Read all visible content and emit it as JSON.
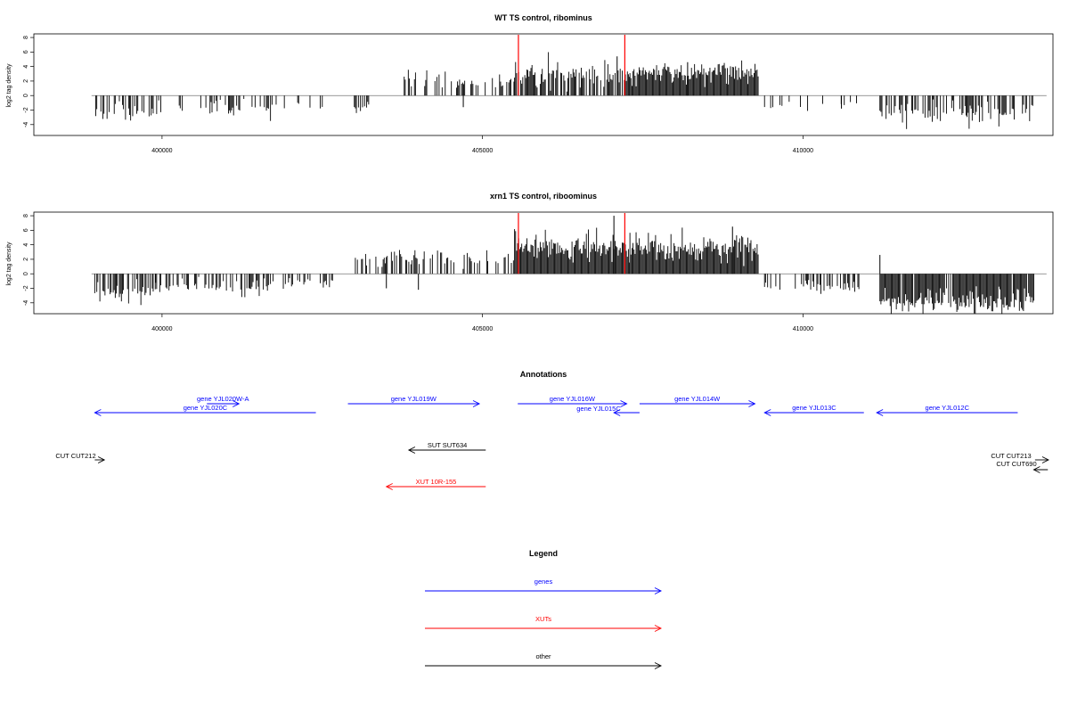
{
  "chart_data": [
    {
      "type": "bar",
      "title": "WT TS control, ribominus",
      "ylabel": "log2 tag density",
      "xlim": [
        398000,
        413900
      ],
      "ylim": [
        -5.5,
        8.5
      ],
      "xticks": [
        400000,
        405000,
        410000
      ],
      "xtick_labels": [
        "400000",
        "405000",
        "410000"
      ],
      "yticks": [
        -4,
        -2,
        0,
        2,
        4,
        6,
        8
      ],
      "ytick_labels": [
        "-4",
        "-2",
        "0",
        "2",
        "4",
        "6",
        "8"
      ],
      "marker_lines": [
        405560,
        407220
      ],
      "marker_color": "#ff0000",
      "baseline": [
        398900,
        413800
      ],
      "segments": [
        {
          "x": [
            398950,
            399900
          ],
          "sign": -1,
          "base": 1.8,
          "amp": 1.8,
          "density": 0.35
        },
        {
          "x": [
            399900,
            401700
          ],
          "sign": -1,
          "base": 1.3,
          "amp": 1.8,
          "density": 0.3
        },
        {
          "x": [
            401700,
            402700
          ],
          "sign": -1,
          "base": 1.0,
          "amp": 0.9,
          "density": 0.2
        },
        {
          "x": [
            403000,
            403250
          ],
          "sign": -1,
          "base": 1.5,
          "amp": 1.2,
          "density": 0.3
        },
        {
          "x": [
            403650,
            404450
          ],
          "sign": 1,
          "base": 1.6,
          "amp": 2.2,
          "density": 0.3
        },
        {
          "x": [
            404450,
            405500
          ],
          "sign": 1,
          "base": 1.4,
          "amp": 1.5,
          "density": 0.35
        },
        {
          "x": [
            405500,
            407300
          ],
          "sign": 1,
          "base": 2.2,
          "amp": 2.8,
          "density": 0.7
        },
        {
          "x": [
            407300,
            409300
          ],
          "sign": 1,
          "base": 2.6,
          "amp": 2.2,
          "density": 1.0
        },
        {
          "x": [
            409400,
            410100
          ],
          "sign": -1,
          "base": 1.2,
          "amp": 1.0,
          "density": 0.2
        },
        {
          "x": [
            410100,
            411100
          ],
          "sign": -1,
          "base": 1.0,
          "amp": 0.8,
          "density": 0.1
        },
        {
          "x": [
            411200,
            413600
          ],
          "sign": -1,
          "base": 2.0,
          "amp": 2.2,
          "density": 0.55
        }
      ],
      "peaks": [
        {
          "x": 407100,
          "y": 5.4
        },
        {
          "x": 408200,
          "y": 4.6
        },
        {
          "x": 404700,
          "y": -1.6
        },
        {
          "x": 410600,
          "y": -1.8
        }
      ]
    },
    {
      "type": "bar",
      "title": "xrn1 TS control, riboominus",
      "ylabel": "log2 tag density",
      "xlim": [
        398000,
        413900
      ],
      "ylim": [
        -5.5,
        8.5
      ],
      "xticks": [
        400000,
        405000,
        410000
      ],
      "xtick_labels": [
        "400000",
        "405000",
        "410000"
      ],
      "yticks": [
        -4,
        -2,
        0,
        2,
        4,
        6,
        8
      ],
      "ytick_labels": [
        "-4",
        "-2",
        "0",
        "2",
        "4",
        "6",
        "8"
      ],
      "marker_lines": [
        405560,
        407220
      ],
      "marker_color": "#ff0000",
      "baseline": [
        398900,
        413800
      ],
      "segments": [
        {
          "x": [
            398950,
            399900
          ],
          "sign": -1,
          "base": 2.0,
          "amp": 2.0,
          "density": 0.45
        },
        {
          "x": [
            399900,
            401700
          ],
          "sign": -1,
          "base": 1.5,
          "amp": 1.8,
          "density": 0.4
        },
        {
          "x": [
            401700,
            402700
          ],
          "sign": -1,
          "base": 1.1,
          "amp": 1.0,
          "density": 0.25
        },
        {
          "x": [
            403000,
            403450
          ],
          "sign": 1,
          "base": 1.2,
          "amp": 1.8,
          "density": 0.3
        },
        {
          "x": [
            403450,
            405500
          ],
          "sign": 1,
          "base": 1.6,
          "amp": 2.0,
          "density": 0.45
        },
        {
          "x": [
            405500,
            407300
          ],
          "sign": 1,
          "base": 3.0,
          "amp": 3.0,
          "density": 1.0
        },
        {
          "x": [
            407300,
            409300
          ],
          "sign": 1,
          "base": 3.0,
          "amp": 2.6,
          "density": 1.0
        },
        {
          "x": [
            409400,
            410900
          ],
          "sign": -1,
          "base": 1.4,
          "amp": 1.4,
          "density": 0.45
        },
        {
          "x": [
            411200,
            413600
          ],
          "sign": -1,
          "base": 3.2,
          "amp": 2.2,
          "density": 0.95
        }
      ],
      "peaks": [
        {
          "x": 407050,
          "y": 8.0
        },
        {
          "x": 408900,
          "y": 6.5
        },
        {
          "x": 411200,
          "y": 2.6
        },
        {
          "x": 403500,
          "y": -2.0
        },
        {
          "x": 404000,
          "y": -2.2
        }
      ]
    }
  ],
  "annotations": {
    "title": "Annotations",
    "xlim": [
      398000,
      413900
    ],
    "features": [
      {
        "label": "gene YJL020W-A",
        "color": "#0000ff",
        "kind": "gene",
        "start": 400700,
        "end": 401200,
        "strand": "+",
        "row": 1
      },
      {
        "label": "gene YJL020C",
        "color": "#0000ff",
        "kind": "gene",
        "start": 398950,
        "end": 402400,
        "strand": "-",
        "row": 2
      },
      {
        "label": "gene YJL019W",
        "color": "#0000ff",
        "kind": "gene",
        "start": 402900,
        "end": 404950,
        "strand": "+",
        "row": 1
      },
      {
        "label": "gene YJL016W",
        "color": "#0000ff",
        "kind": "gene",
        "start": 405550,
        "end": 407250,
        "strand": "+",
        "row": 1
      },
      {
        "label": "gene YJL015C",
        "color": "#0000ff",
        "kind": "gene",
        "start": 407050,
        "end": 407450,
        "strand": "-",
        "row": 2
      },
      {
        "label": "gene YJL014W",
        "color": "#0000ff",
        "kind": "gene",
        "start": 407450,
        "end": 409250,
        "strand": "+",
        "row": 1
      },
      {
        "label": "gene YJL013C",
        "color": "#0000ff",
        "kind": "gene",
        "start": 409400,
        "end": 410950,
        "strand": "-",
        "row": 2
      },
      {
        "label": "gene YJL012C",
        "color": "#0000ff",
        "kind": "gene",
        "start": 411150,
        "end": 413350,
        "strand": "-",
        "row": 2
      },
      {
        "label": "CUT CUT212",
        "color": "#000000",
        "kind": "other",
        "start": 398950,
        "end": 399100,
        "strand": "+",
        "row": 4
      },
      {
        "label": "SUT SUT634",
        "color": "#000000",
        "kind": "other",
        "start": 403850,
        "end": 405050,
        "strand": "-",
        "row": 3
      },
      {
        "label": "CUT CUT213",
        "color": "#000000",
        "kind": "other",
        "start": 413620,
        "end": 413830,
        "strand": "+",
        "row": 4
      },
      {
        "label": "CUT CUT690",
        "color": "#000000",
        "kind": "other",
        "start": 413600,
        "end": 413820,
        "strand": "-",
        "row": 5
      },
      {
        "label": "XUT 10R-155",
        "color": "#ff0000",
        "kind": "xut",
        "start": 403500,
        "end": 405050,
        "strand": "-",
        "row": 6
      }
    ]
  },
  "legend": {
    "title": "Legend",
    "items": [
      {
        "label": "genes",
        "color": "#0000ff"
      },
      {
        "label": "XUTs",
        "color": "#ff0000"
      },
      {
        "label": "other",
        "color": "#000000"
      }
    ]
  }
}
